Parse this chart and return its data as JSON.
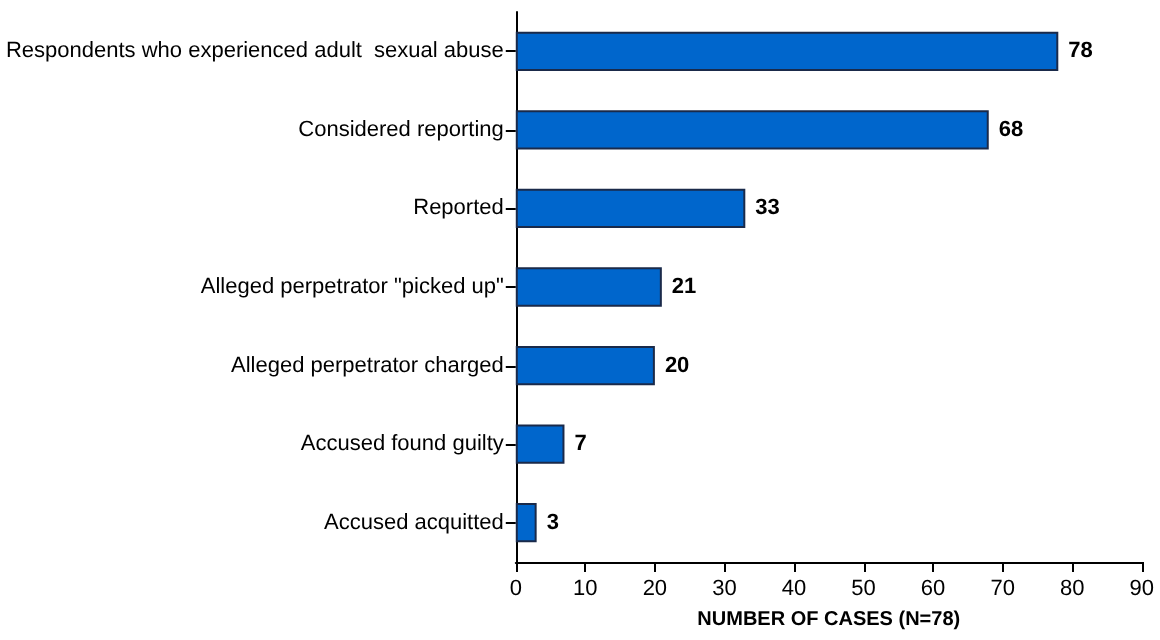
{
  "chart_data": {
    "type": "bar",
    "orientation": "horizontal",
    "xlabel": "NUMBER OF CASES (N=78)",
    "categories": [
      "Respondents who experienced adult  sexual abuse",
      "Considered reporting",
      "Reported",
      "Alleged perpetrator \"picked up\"",
      "Alleged perpetrator charged",
      "Accused found guilty",
      "Accused acquitted"
    ],
    "values": [
      78,
      68,
      33,
      21,
      20,
      7,
      3
    ],
    "color": "#0066cc",
    "data_labels": true,
    "xlim": [
      0,
      90
    ],
    "xticks": [
      0,
      10,
      20,
      30,
      40,
      50,
      60,
      70,
      80,
      90
    ]
  }
}
